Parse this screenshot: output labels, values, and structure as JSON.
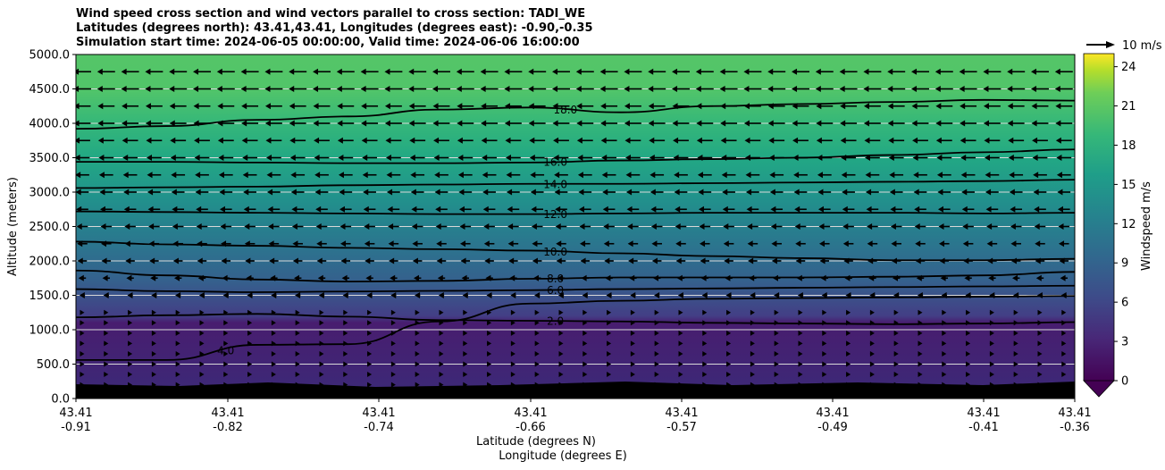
{
  "chart_data": {
    "type": "contour",
    "title_lines": [
      "Wind speed cross section and wind vectors parallel to cross section: TADI_WE",
      "Latitudes (degrees north): 43.41,43.41, Longitudes (degrees east): -0.90,-0.35",
      "Simulation start time: 2024-06-05 00:00:00, Valid time: 2024-06-06 16:00:00"
    ],
    "ylabel": "Altitude (meters)",
    "xlabel_lat": "Latitude (degrees N)",
    "xlabel_lon": "Longitude (degrees E)",
    "ylim": [
      0,
      5000
    ],
    "yticks": [
      "0.0",
      "500.0",
      "1000.0",
      "1500.0",
      "2000.0",
      "2500.0",
      "3000.0",
      "3500.0",
      "4000.0",
      "4500.0",
      "5000.0"
    ],
    "xlim": [
      -0.91,
      -0.36
    ],
    "xticks": [
      {
        "lat": "43.41",
        "lon": "-0.91"
      },
      {
        "lat": "43.41",
        "lon": "-0.82"
      },
      {
        "lat": "43.41",
        "lon": "-0.74"
      },
      {
        "lat": "43.41",
        "lon": "-0.66"
      },
      {
        "lat": "43.41",
        "lon": "-0.57"
      },
      {
        "lat": "43.41",
        "lon": "-0.49"
      },
      {
        "lat": "43.41",
        "lon": "-0.41"
      },
      {
        "lat": "43.41",
        "lon": "-0.36"
      }
    ],
    "colorbar": {
      "label": "Windspeed m/s",
      "min": 0,
      "max": 25,
      "ticks": [
        "0",
        "3",
        "6",
        "9",
        "12",
        "15",
        "18",
        "21",
        "24"
      ],
      "extend": "min"
    },
    "quiver_key": "10 m/s",
    "contour_labels": [
      "2.0",
      "4.0",
      "6.0",
      "8.0",
      "10.0",
      "12.0",
      "14.0",
      "16.0",
      "18.0"
    ],
    "contours": [
      {
        "level": 2,
        "label": "2.0",
        "alt": [
          1180,
          1210,
          1230,
          1190,
          1140,
          1130,
          1120,
          1100,
          1090,
          1080,
          1090,
          1110
        ]
      },
      {
        "level": 4,
        "label": "4.0",
        "alt": [
          560,
          560,
          780,
          790,
          1120,
          1380,
          1420,
          1450,
          1460,
          1470,
          1480,
          1490
        ]
      },
      {
        "level": 6,
        "label": "6.0",
        "alt": [
          1590,
          1560,
          1545,
          1555,
          1565,
          1575,
          1590,
          1600,
          1610,
          1620,
          1630,
          1640
        ]
      },
      {
        "level": 8,
        "label": "8.0",
        "alt": [
          1860,
          1790,
          1730,
          1700,
          1710,
          1740,
          1760,
          1760,
          1760,
          1770,
          1790,
          1840
        ]
      },
      {
        "level": 10,
        "label": "10.0",
        "alt": [
          2280,
          2240,
          2220,
          2190,
          2170,
          2150,
          2110,
          2070,
          2040,
          2010,
          2010,
          2030
        ]
      },
      {
        "level": 12,
        "label": "12.0",
        "alt": [
          2720,
          2710,
          2700,
          2690,
          2680,
          2680,
          2690,
          2700,
          2700,
          2700,
          2690,
          2700
        ]
      },
      {
        "level": 14,
        "label": "14.0",
        "alt": [
          3060,
          3070,
          3080,
          3100,
          3110,
          3120,
          3120,
          3130,
          3140,
          3150,
          3160,
          3180
        ]
      },
      {
        "level": 16,
        "label": "16.0",
        "alt": [
          3440,
          3440,
          3430,
          3420,
          3420,
          3430,
          3460,
          3480,
          3500,
          3540,
          3580,
          3620
        ]
      },
      {
        "level": 18,
        "label": "18.0",
        "alt": [
          3920,
          3960,
          4050,
          4100,
          4200,
          4230,
          4160,
          4250,
          4280,
          4310,
          4340,
          4330
        ]
      }
    ],
    "vectors": {
      "rows_alt": [
        200,
        350,
        500,
        650,
        800,
        950,
        1100,
        1250,
        1500,
        1750,
        2000,
        2250,
        2500,
        2750,
        3000,
        3250,
        3500,
        3750,
        4000,
        4250,
        4500,
        4750
      ],
      "speeds": [
        2.5,
        2.5,
        3,
        3,
        2.5,
        2,
        2,
        1.5,
        6,
        8,
        10,
        11,
        12,
        13,
        14,
        15,
        16,
        17,
        18,
        18,
        19,
        19
      ],
      "direction_upper": "westward",
      "direction_lower": "eastward"
    }
  }
}
